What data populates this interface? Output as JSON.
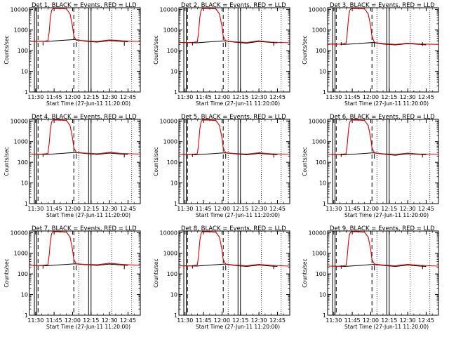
{
  "chart_data": {
    "type": "line",
    "layout": "3x3 grid",
    "yscale": "log",
    "ylim": [
      1,
      12000
    ],
    "xlim": [
      "11:25",
      "12:55"
    ],
    "ylabel": "Counts/sec",
    "xlabel": "Start Time (27-Jun-11 11:20:00)",
    "x_ticks": [
      "11:30",
      "11:45",
      "12:00",
      "12:15",
      "12:30",
      "12:45"
    ],
    "y_ticks": [
      "1",
      "10",
      "100",
      "1000",
      "10000"
    ],
    "series_colors": {
      "events": "#000000",
      "lld": "#e00000"
    },
    "panels": [
      {
        "title": "Det 1, BLACK = Events, RED = LLD",
        "lld": [
          [
            "11:25",
            290
          ],
          [
            "11:35",
            285
          ],
          [
            "11:40",
            300
          ],
          [
            "11:41",
            800
          ],
          [
            "11:42",
            4000
          ],
          [
            "11:43",
            9000
          ],
          [
            "11:44",
            11000
          ],
          [
            "11:50",
            11000
          ],
          [
            "11:55",
            10500
          ],
          [
            "11:58",
            6000
          ],
          [
            "12:00",
            1500
          ],
          [
            "12:01",
            500
          ],
          [
            "12:03",
            320
          ],
          [
            "12:10",
            300
          ],
          [
            "12:20",
            280
          ],
          [
            "12:30",
            330
          ],
          [
            "12:40",
            300
          ],
          [
            "12:55",
            280
          ]
        ],
        "events": [
          [
            "11:25",
            290
          ],
          [
            "11:35",
            285
          ],
          [
            "11:39",
            280
          ],
          [
            "12:02",
            350
          ],
          [
            "12:10",
            290
          ],
          [
            "12:20",
            260
          ],
          [
            "12:30",
            310
          ],
          [
            "12:40",
            280
          ],
          [
            "12:45",
            270
          ]
        ]
      },
      {
        "title": "Det 2, BLACK = Events, RED = LLD",
        "lld": [
          [
            "11:25",
            250
          ],
          [
            "11:35",
            245
          ],
          [
            "11:40",
            270
          ],
          [
            "11:41",
            800
          ],
          [
            "11:42",
            4000
          ],
          [
            "11:43",
            9000
          ],
          [
            "11:44",
            11000
          ],
          [
            "11:50",
            11000
          ],
          [
            "11:55",
            10500
          ],
          [
            "11:58",
            6000
          ],
          [
            "12:00",
            1500
          ],
          [
            "12:01",
            500
          ],
          [
            "12:03",
            300
          ],
          [
            "12:10",
            270
          ],
          [
            "12:20",
            250
          ],
          [
            "12:30",
            300
          ],
          [
            "12:40",
            260
          ],
          [
            "12:55",
            240
          ]
        ],
        "events": [
          [
            "11:25",
            250
          ],
          [
            "11:35",
            245
          ],
          [
            "11:39",
            240
          ],
          [
            "12:02",
            300
          ],
          [
            "12:10",
            260
          ],
          [
            "12:20",
            230
          ],
          [
            "12:30",
            280
          ],
          [
            "12:40",
            250
          ],
          [
            "12:45",
            240
          ]
        ]
      },
      {
        "title": "Det 3, BLACK = Events, RED = LLD",
        "lld": [
          [
            "11:25",
            210
          ],
          [
            "11:35",
            205
          ],
          [
            "11:40",
            230
          ],
          [
            "11:41",
            800
          ],
          [
            "11:42",
            4000
          ],
          [
            "11:43",
            9000
          ],
          [
            "11:44",
            11000
          ],
          [
            "11:50",
            11000
          ],
          [
            "11:55",
            10500
          ],
          [
            "11:58",
            6000
          ],
          [
            "12:00",
            1500
          ],
          [
            "12:01",
            500
          ],
          [
            "12:03",
            250
          ],
          [
            "12:10",
            220
          ],
          [
            "12:20",
            200
          ],
          [
            "12:30",
            230
          ],
          [
            "12:40",
            210
          ],
          [
            "12:55",
            200
          ]
        ],
        "events": [
          [
            "11:25",
            210
          ],
          [
            "11:35",
            205
          ],
          [
            "11:39",
            200
          ],
          [
            "12:02",
            250
          ],
          [
            "12:10",
            210
          ],
          [
            "12:20",
            190
          ],
          [
            "12:30",
            220
          ],
          [
            "12:40",
            200
          ],
          [
            "12:45",
            190
          ]
        ]
      },
      {
        "title": "Det 4, BLACK = Events, RED = LLD",
        "lld": [
          [
            "11:25",
            250
          ],
          [
            "11:35",
            245
          ],
          [
            "11:40",
            270
          ],
          [
            "11:41",
            800
          ],
          [
            "11:42",
            4000
          ],
          [
            "11:43",
            9000
          ],
          [
            "11:44",
            11000
          ],
          [
            "11:50",
            11000
          ],
          [
            "11:55",
            10500
          ],
          [
            "11:58",
            6000
          ],
          [
            "12:00",
            1500
          ],
          [
            "12:01",
            500
          ],
          [
            "12:03",
            300
          ],
          [
            "12:10",
            280
          ],
          [
            "12:20",
            260
          ],
          [
            "12:30",
            300
          ],
          [
            "12:40",
            270
          ],
          [
            "12:55",
            250
          ]
        ],
        "events": [
          [
            "11:25",
            250
          ],
          [
            "11:35",
            245
          ],
          [
            "11:39",
            240
          ],
          [
            "12:02",
            300
          ],
          [
            "12:10",
            270
          ],
          [
            "12:20",
            240
          ],
          [
            "12:30",
            280
          ],
          [
            "12:40",
            250
          ],
          [
            "12:45",
            240
          ]
        ]
      },
      {
        "title": "Det 5, BLACK = Events, RED = LLD",
        "lld": [
          [
            "11:25",
            240
          ],
          [
            "11:35",
            235
          ],
          [
            "11:40",
            260
          ],
          [
            "11:41",
            800
          ],
          [
            "11:42",
            4000
          ],
          [
            "11:43",
            9000
          ],
          [
            "11:44",
            11000
          ],
          [
            "11:50",
            11000
          ],
          [
            "11:55",
            10500
          ],
          [
            "11:58",
            6000
          ],
          [
            "12:00",
            1500
          ],
          [
            "12:01",
            500
          ],
          [
            "12:03",
            290
          ],
          [
            "12:10",
            270
          ],
          [
            "12:20",
            250
          ],
          [
            "12:30",
            290
          ],
          [
            "12:40",
            260
          ],
          [
            "12:55",
            240
          ]
        ],
        "events": [
          [
            "11:25",
            240
          ],
          [
            "11:35",
            235
          ],
          [
            "11:39",
            230
          ],
          [
            "12:02",
            290
          ],
          [
            "12:10",
            260
          ],
          [
            "12:20",
            230
          ],
          [
            "12:30",
            270
          ],
          [
            "12:40",
            240
          ],
          [
            "12:45",
            230
          ]
        ]
      },
      {
        "title": "Det 6, BLACK = Events, RED = LLD",
        "lld": [
          [
            "11:25",
            240
          ],
          [
            "11:35",
            235
          ],
          [
            "11:40",
            260
          ],
          [
            "11:41",
            800
          ],
          [
            "11:42",
            4000
          ],
          [
            "11:43",
            9000
          ],
          [
            "11:44",
            11000
          ],
          [
            "11:50",
            11000
          ],
          [
            "11:55",
            10500
          ],
          [
            "11:58",
            6000
          ],
          [
            "12:00",
            1500
          ],
          [
            "12:01",
            500
          ],
          [
            "12:03",
            290
          ],
          [
            "12:10",
            260
          ],
          [
            "12:20",
            240
          ],
          [
            "12:30",
            280
          ],
          [
            "12:40",
            250
          ],
          [
            "12:55",
            240
          ]
        ],
        "events": [
          [
            "11:25",
            240
          ],
          [
            "11:35",
            235
          ],
          [
            "11:39",
            230
          ],
          [
            "12:02",
            290
          ],
          [
            "12:10",
            250
          ],
          [
            "12:20",
            220
          ],
          [
            "12:30",
            260
          ],
          [
            "12:40",
            240
          ],
          [
            "12:45",
            230
          ]
        ]
      },
      {
        "title": "Det 7, BLACK = Events, RED = LLD",
        "lld": [
          [
            "11:25",
            260
          ],
          [
            "11:35",
            255
          ],
          [
            "11:40",
            280
          ],
          [
            "11:41",
            800
          ],
          [
            "11:42",
            4000
          ],
          [
            "11:43",
            9000
          ],
          [
            "11:44",
            11000
          ],
          [
            "11:50",
            11000
          ],
          [
            "11:55",
            10500
          ],
          [
            "11:58",
            6000
          ],
          [
            "12:00",
            1500
          ],
          [
            "12:01",
            500
          ],
          [
            "12:03",
            310
          ],
          [
            "12:10",
            290
          ],
          [
            "12:20",
            280
          ],
          [
            "12:30",
            330
          ],
          [
            "12:40",
            290
          ],
          [
            "12:55",
            260
          ]
        ],
        "events": [
          [
            "11:25",
            260
          ],
          [
            "11:35",
            255
          ],
          [
            "11:39",
            250
          ],
          [
            "12:02",
            310
          ],
          [
            "12:10",
            280
          ],
          [
            "12:20",
            260
          ],
          [
            "12:30",
            300
          ],
          [
            "12:40",
            270
          ],
          [
            "12:45",
            260
          ]
        ]
      },
      {
        "title": "Det 8, BLACK = Events, RED = LLD",
        "lld": [
          [
            "11:25",
            250
          ],
          [
            "11:35",
            245
          ],
          [
            "11:40",
            270
          ],
          [
            "11:41",
            800
          ],
          [
            "11:42",
            4000
          ],
          [
            "11:43",
            9000
          ],
          [
            "11:44",
            11000
          ],
          [
            "11:50",
            11000
          ],
          [
            "11:55",
            10500
          ],
          [
            "11:58",
            6000
          ],
          [
            "12:00",
            1500
          ],
          [
            "12:01",
            500
          ],
          [
            "12:03",
            300
          ],
          [
            "12:10",
            270
          ],
          [
            "12:20",
            250
          ],
          [
            "12:30",
            290
          ],
          [
            "12:40",
            260
          ],
          [
            "12:55",
            240
          ]
        ],
        "events": [
          [
            "11:25",
            250
          ],
          [
            "11:35",
            245
          ],
          [
            "11:39",
            240
          ],
          [
            "12:02",
            300
          ],
          [
            "12:10",
            260
          ],
          [
            "12:20",
            230
          ],
          [
            "12:30",
            270
          ],
          [
            "12:40",
            240
          ],
          [
            "12:45",
            230
          ]
        ]
      },
      {
        "title": "Det 9, BLACK = Events, RED = LLD",
        "lld": [
          [
            "11:25",
            240
          ],
          [
            "11:35",
            235
          ],
          [
            "11:40",
            260
          ],
          [
            "11:41",
            800
          ],
          [
            "11:42",
            4000
          ],
          [
            "11:43",
            9000
          ],
          [
            "11:44",
            11000
          ],
          [
            "11:50",
            11000
          ],
          [
            "11:55",
            10500
          ],
          [
            "11:58",
            6000
          ],
          [
            "12:00",
            1500
          ],
          [
            "12:01",
            500
          ],
          [
            "12:03",
            300
          ],
          [
            "12:10",
            270
          ],
          [
            "12:20",
            250
          ],
          [
            "12:30",
            290
          ],
          [
            "12:40",
            260
          ],
          [
            "12:55",
            240
          ]
        ],
        "events": [
          [
            "11:25",
            240
          ],
          [
            "11:35",
            235
          ],
          [
            "11:39",
            230
          ],
          [
            "12:02",
            290
          ],
          [
            "12:10",
            260
          ],
          [
            "12:20",
            230
          ],
          [
            "12:30",
            270
          ],
          [
            "12:40",
            240
          ],
          [
            "12:45",
            230
          ]
        ]
      }
    ],
    "vertical_markers": {
      "solid": [
        "11:29",
        "11:31",
        "12:13",
        "12:15"
      ],
      "dashed": [
        "11:32",
        "12:01"
      ],
      "dotted": [
        "12:05",
        "12:32",
        "12:48"
      ]
    }
  }
}
